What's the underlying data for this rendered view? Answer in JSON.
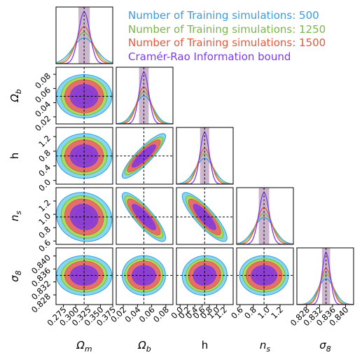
{
  "chart_data": {
    "type": "corner",
    "parameters": [
      {
        "label": "Ωm",
        "latex_label": "Omega_m",
        "truth": 0.317,
        "range": [
          0.26,
          0.375
        ],
        "ticks": [
          0.275,
          0.3,
          0.325,
          0.35,
          0.375
        ],
        "tick_labels": [
          "0.275",
          "0.300",
          "0.325",
          "0.350",
          "0.375"
        ]
      },
      {
        "label": "Ωb",
        "latex_label": "Omega_b",
        "truth": 0.049,
        "range": [
          0.01,
          0.09
        ],
        "ticks": [
          0.02,
          0.04,
          0.06,
          0.08
        ],
        "tick_labels": [
          "0.02",
          "0.04",
          "0.06",
          "0.08"
        ]
      },
      {
        "label": "h",
        "latex_label": "h",
        "truth": 0.67,
        "range": [
          -0.1,
          1.45
        ],
        "ticks": [
          0.0,
          0.4,
          0.8,
          1.2
        ],
        "tick_labels": [
          "0.0",
          "0.4",
          "0.8",
          "1.2"
        ],
        "x_ticks": [
          0.0,
          0.2,
          0.4,
          0.6,
          0.8,
          1.0,
          1.2
        ],
        "x_tick_labels": [
          "0.0",
          "0.2",
          "0.4",
          "0.6",
          "0.8",
          "1.0",
          "1.2"
        ]
      },
      {
        "label": "ns",
        "latex_label": "n_s",
        "truth": 0.96,
        "range": [
          0.55,
          1.4
        ],
        "ticks": [
          0.6,
          0.8,
          1.0,
          1.2
        ],
        "tick_labels": [
          "0.6",
          "0.8",
          "1.0",
          "1.2"
        ],
        "x_ticks": [
          0.6,
          0.8,
          1.0,
          1.2
        ],
        "x_tick_labels": [
          "0.6",
          "0.8",
          "1.0",
          "1.2"
        ]
      },
      {
        "label": "σ8",
        "latex_label": "sigma_8",
        "truth": 0.834,
        "range": [
          0.825,
          0.8425
        ],
        "ticks": [
          0.828,
          0.832,
          0.836,
          0.84
        ],
        "tick_labels": [
          "0.828",
          "0.832",
          "0.836",
          "0.840"
        ]
      }
    ],
    "axis_labels": {
      "Ωm": {
        "base": "Ω",
        "sub": "m"
      },
      "Ωb": {
        "base": "Ω",
        "sub": "b"
      },
      "h": {
        "base": "h",
        "sub": ""
      },
      "ns": {
        "base": "n",
        "sub": "s"
      },
      "σ8": {
        "base": "σ",
        "sub": "8"
      }
    },
    "series": [
      {
        "name": "Number of Training simulations: 500",
        "color": "#3a9be0",
        "fill": "#7fd6ee",
        "sigma": [
          0.023,
          0.0125,
          0.25,
          0.15,
          0.0025
        ]
      },
      {
        "name": "Number of Training simulations: 1250",
        "color": "#7ab648",
        "fill": "#a7dc5e",
        "sigma": [
          0.019,
          0.011,
          0.21,
          0.13,
          0.0021
        ]
      },
      {
        "name": "Number of Training simulations: 1500",
        "color": "#e8573a",
        "fill": "#e8696a",
        "sigma": [
          0.016,
          0.0095,
          0.18,
          0.11,
          0.0018
        ]
      },
      {
        "name": "Cramér-Rao Information bound",
        "color": "#7c3aed",
        "fill": "#8d3fd0",
        "sigma": [
          0.0115,
          0.0068,
          0.125,
          0.078,
          0.00125
        ]
      }
    ],
    "correlations": {
      "1-0": 0.0,
      "2-0": 0.0,
      "2-1": 0.88,
      "3-0": -0.1,
      "3-1": -0.85,
      "3-2": -0.85,
      "4-0": 0.0,
      "4-1": 0.0,
      "4-2": 0.05,
      "4-3": 0.0
    },
    "contour_levels_sigma": [
      1,
      2
    ],
    "truth_lines": "dashed black",
    "legend_position": "top-right"
  }
}
